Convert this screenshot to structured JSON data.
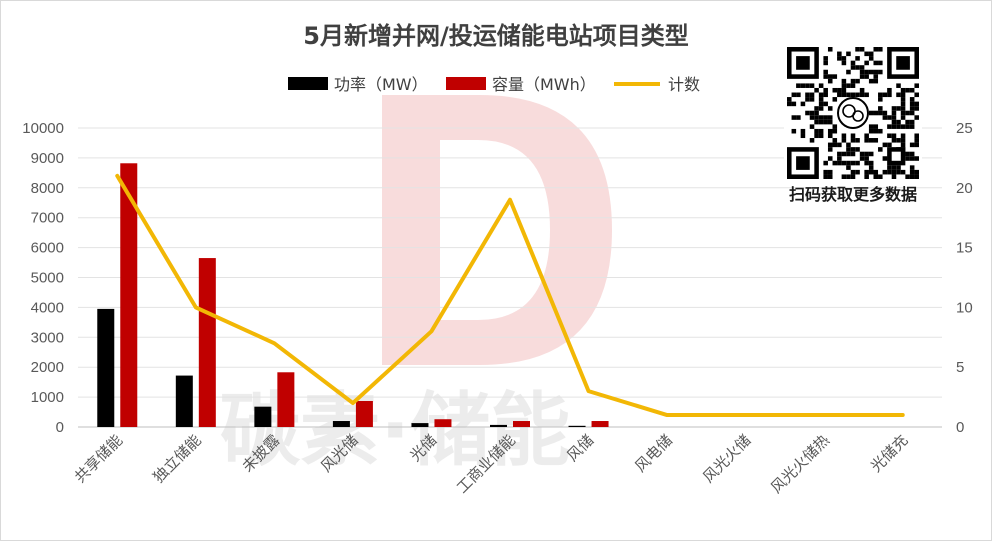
{
  "chart_data": {
    "type": "bar",
    "title": "5月新增并网/投运储能电站项目类型",
    "categories": [
      "共享储能",
      "独立储能",
      "未披露",
      "风光储",
      "光储",
      "工商业储能",
      "风储",
      "风电储",
      "风光火储",
      "风光火储热",
      "光储充"
    ],
    "series": [
      {
        "name": "功率（MW）",
        "type": "bar",
        "axis": "left",
        "color": "#000000",
        "values": [
          3950,
          1720,
          680,
          200,
          130,
          70,
          40,
          0,
          0,
          0,
          0
        ]
      },
      {
        "name": "容量（MWh）",
        "type": "bar",
        "axis": "left",
        "color": "#C00000",
        "values": [
          8820,
          5650,
          1830,
          870,
          260,
          200,
          200,
          0,
          0,
          0,
          0
        ]
      },
      {
        "name": "计数",
        "type": "line",
        "axis": "right",
        "color": "#F2B705",
        "values": [
          21,
          10,
          7,
          2,
          8,
          19,
          3,
          1,
          1,
          1,
          1
        ]
      }
    ],
    "ylim": [
      0,
      10000
    ],
    "yticks": [
      "0",
      "1000",
      "2000",
      "3000",
      "4000",
      "5000",
      "6000",
      "7000",
      "8000",
      "9000",
      "10000"
    ],
    "y2lim": [
      0,
      25
    ],
    "y2ticks": [
      "0",
      "5",
      "10",
      "15",
      "20",
      "25"
    ],
    "grid": true,
    "legend_position": "top"
  },
  "watermark": {
    "text": "碳素·储能",
    "logo": "db-logo",
    "color": "#F2C9C9"
  },
  "qr": {
    "caption": "扫码获取更多数据",
    "icon": "qr-code-icon"
  }
}
